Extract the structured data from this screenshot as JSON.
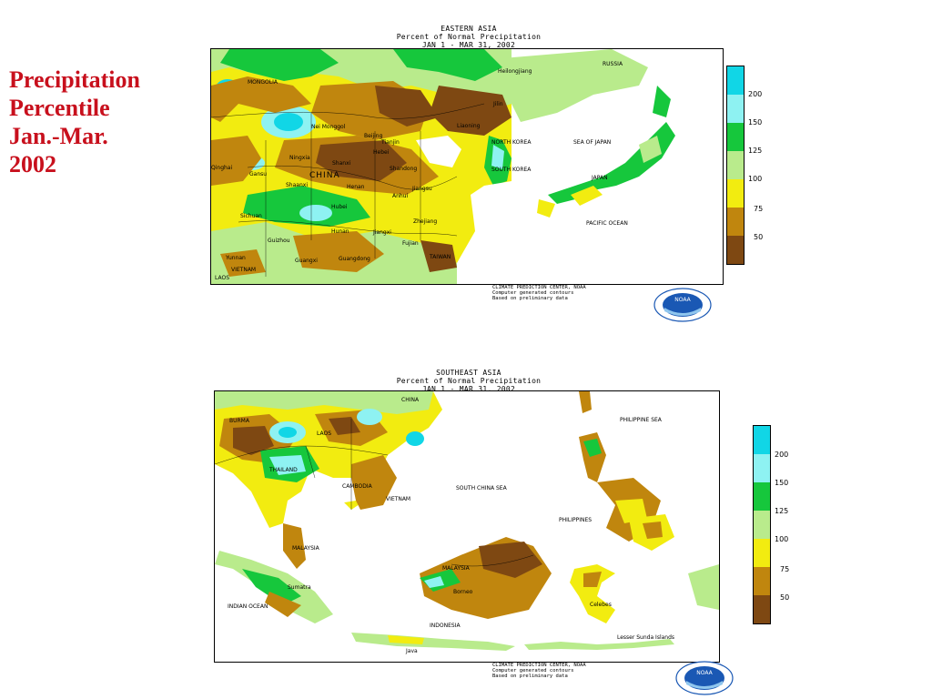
{
  "side_title": {
    "line1": "Precipitation",
    "line2": "Percentile",
    "line3": "Jan.-Mar.",
    "line4": "2002"
  },
  "map_top": {
    "heading_line1": "EASTERN ASIA",
    "heading_line2": "Percent of Normal Precipitation",
    "heading_line3": "JAN  1  -  MAR 31, 2002",
    "labels": {
      "russia": "RUSSIA",
      "heilongjiang": "Heilongjiang",
      "mongolia": "MONGOLIA",
      "jilin": "Jilin",
      "liaoning": "Liaoning",
      "nei_monggol": "Nei Monggol",
      "beijing": "Beijing",
      "tianjin": "Tianjin",
      "hebei": "Hebei",
      "ningxia": "Ningxia",
      "shanxi": "Shanxi",
      "shandong": "Shandong",
      "qinghai": "Qinghai",
      "gansu": "Gansu",
      "china": "CHINA",
      "shaanxi": "Shaanxi",
      "henan": "Henan",
      "jiangsu": "Jiangsu",
      "anhui": "Anhui",
      "sichuan": "Sichuan",
      "hubei": "Hubei",
      "zhejiang": "Zhejiang",
      "hunan": "Hunan",
      "jiangxi": "Jiangxi",
      "guizhou": "Guizhou",
      "fujian": "Fujian",
      "yunnan": "Yunnan",
      "guangxi": "Guangxi",
      "guangdong": "Guangdong",
      "taiwan": "TAIWAN",
      "vietnam": "VIETNAM",
      "laos": "LAOS",
      "north_korea": "NORTH KOREA",
      "south_korea": "SOUTH KOREA",
      "sea_of_japan": "SEA OF JAPAN",
      "japan": "JAPAN",
      "pacific_ocean": "PACIFIC OCEAN"
    },
    "credit_line1": "CLIMATE PREDICTION CENTER, NOAA",
    "credit_line2": "Computer generated contours",
    "credit_line3": "Based on preliminary data"
  },
  "map_bottom": {
    "heading_line1": "SOUTHEAST ASIA",
    "heading_line2": "Percent of Normal Precipitation",
    "heading_line3": "JAN  1  -  MAR 31, 2002",
    "labels": {
      "china": "CHINA",
      "burma": "BURMA",
      "philippine_sea": "PHILIPPINE SEA",
      "laos": "LAOS",
      "thailand": "THAILAND",
      "cambodia": "CAMBODIA",
      "vietnam": "VIETNAM",
      "south_china_sea": "SOUTH CHINA SEA",
      "philippines": "PHILIPPINES",
      "malaysia_west": "MALAYSIA",
      "malaysia_east": "MALAYSIA",
      "sumatra": "Sumatra",
      "borneo": "Borneo",
      "indian_ocean": "INDIAN OCEAN",
      "celebes": "Celebes",
      "indonesia": "INDONESIA",
      "java": "Java",
      "lesser_sunda": "Lesser Sunda Islands"
    },
    "credit_line1": "CLIMATE PREDICTION CENTER, NOAA",
    "credit_line2": "Computer generated contours",
    "credit_line3": "Based on preliminary data"
  },
  "legend": {
    "labels": [
      "200",
      "150",
      "125",
      "100",
      "75",
      "50"
    ],
    "colors": [
      "#11d6e6",
      "#8ef2f2",
      "#16c73c",
      "#b9eb8c",
      "#f2ec10",
      "#c0860e",
      "#7e4812"
    ]
  },
  "logo": {
    "text": "NOAA"
  },
  "colors": {
    "title_red": "#c8101d",
    "very_dry": "#7e4812",
    "dry": "#c0860e",
    "below_normal": "#f2ec10",
    "above_normal": "#b9eb8c",
    "wet": "#16c73c",
    "very_wet": "#8ef2f2",
    "extreme_wet": "#11d6e6"
  }
}
